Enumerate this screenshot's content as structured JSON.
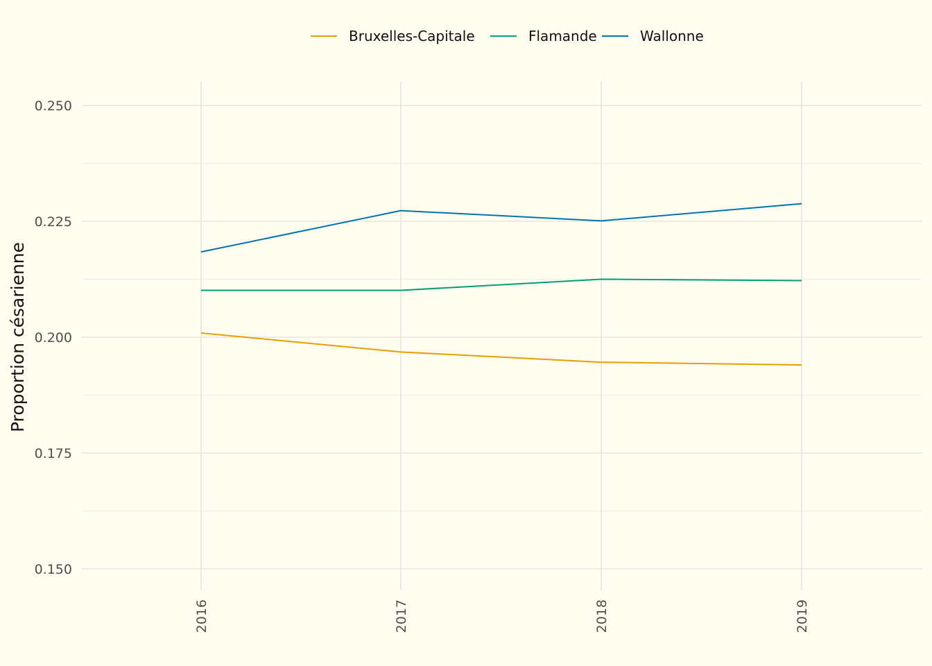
{
  "chart_data": {
    "type": "line",
    "title": "",
    "xlabel": "",
    "ylabel": "Proportion césarienne",
    "x": [
      2016,
      2017,
      2018,
      2019
    ],
    "x_tick_labels": [
      "2016",
      "2017",
      "2018",
      "2019"
    ],
    "ylim": [
      0.15,
      0.25
    ],
    "y_ticks": [
      0.15,
      0.175,
      0.2,
      0.225,
      0.25
    ],
    "y_tick_labels": [
      "0.150",
      "0.175",
      "0.200",
      "0.225",
      "0.250"
    ],
    "grid": true,
    "legend_position": "top",
    "series": [
      {
        "name": "Bruxelles-Capitale",
        "color": "#e69f00",
        "values": [
          0.2009,
          0.1968,
          0.1946,
          0.194
        ]
      },
      {
        "name": "Flamande",
        "color": "#009e73",
        "values": [
          0.2101,
          0.2101,
          0.2125,
          0.2122
        ]
      },
      {
        "name": "Wallonne",
        "color": "#0072b2",
        "values": [
          0.2184,
          0.2273,
          0.2251,
          0.2288
        ]
      }
    ]
  }
}
